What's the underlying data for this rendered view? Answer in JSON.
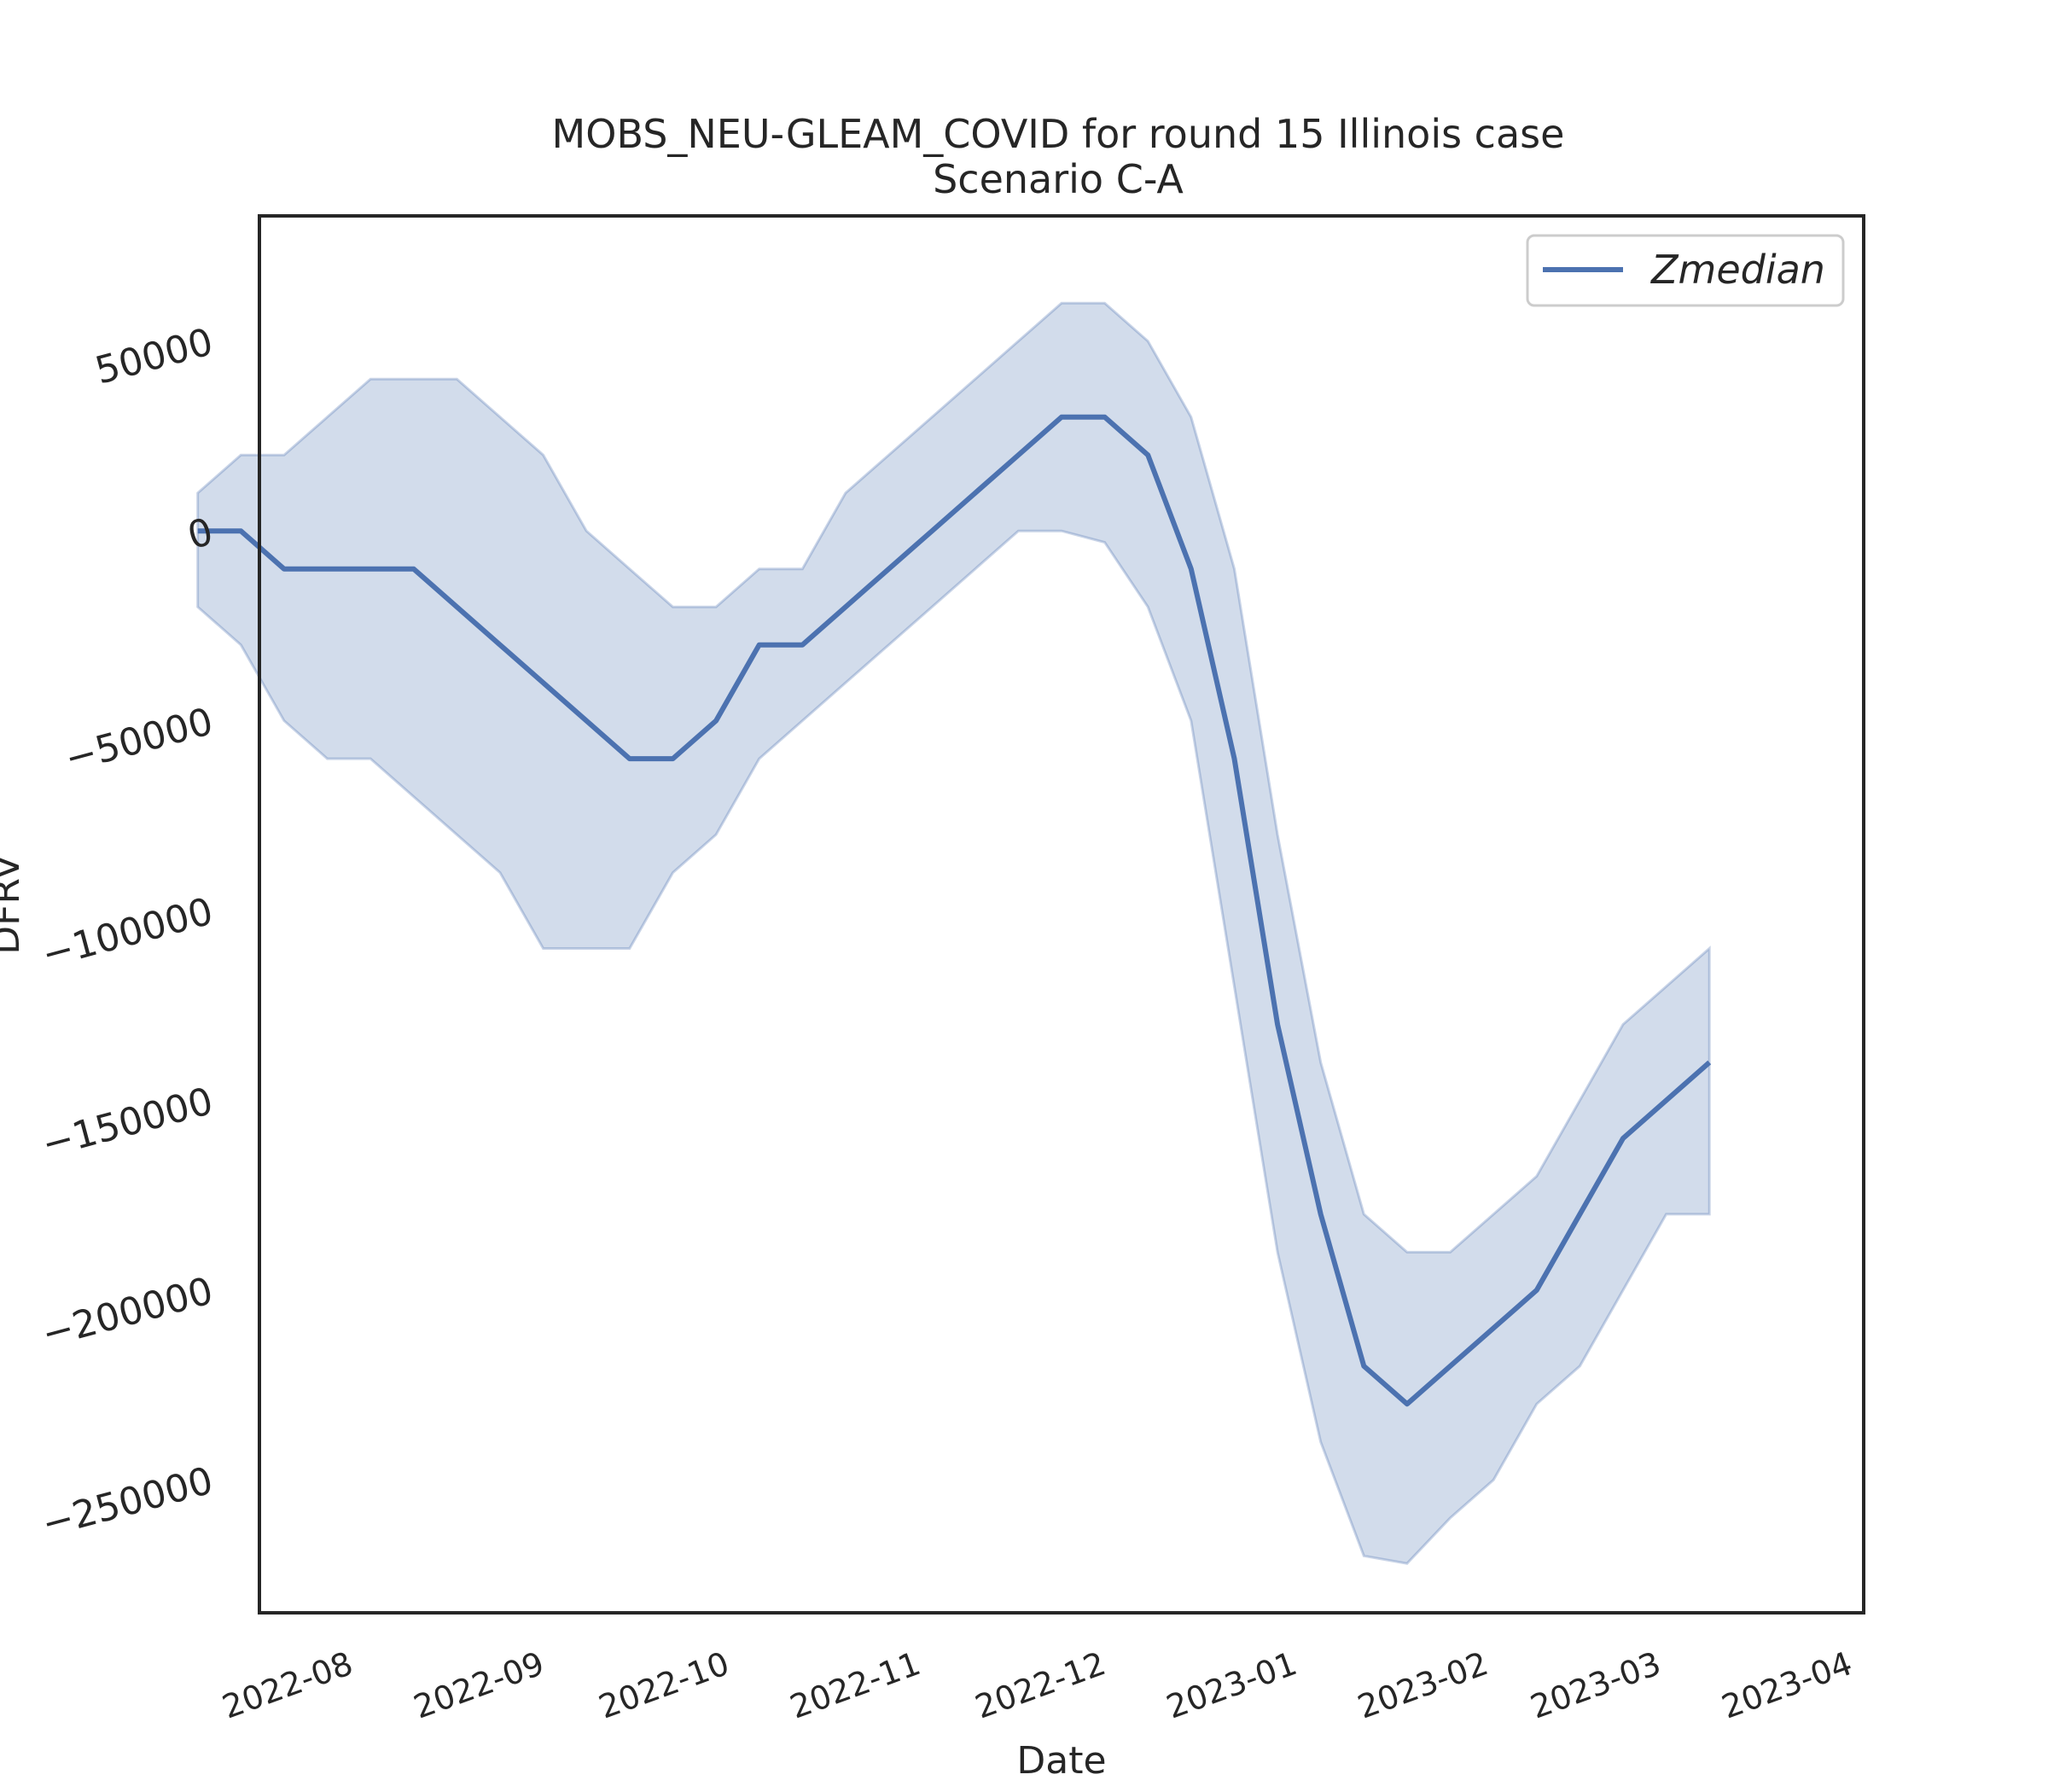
{
  "chart_data": {
    "type": "line",
    "title": "MOBS_NEU-GLEAM_COVID for round 15 Illinois case",
    "subtitle": "Scenario C-A",
    "xlabel": "Date",
    "ylabel": "DFRV",
    "x_ticks": [
      "2022-08",
      "2022-09",
      "2022-10",
      "2022-11",
      "2022-12",
      "2023-01",
      "2023-02",
      "2023-03",
      "2023-04"
    ],
    "y_ticks": [
      50000,
      0,
      -50000,
      -100000,
      -150000,
      -200000,
      -250000
    ],
    "y_tick_labels": [
      "50000",
      "0",
      "−50000",
      "−100000",
      "−150000",
      "−200000",
      "−250000"
    ],
    "xlim": [
      "2022-07-19",
      "2023-04-05"
    ],
    "ylim": [
      -285000,
      83000
    ],
    "legend_position": "top-right",
    "grid": false,
    "series": [
      {
        "name": "Zmedian",
        "color": "#4c72b0",
        "x": [
          "2022-07-09",
          "2022-07-16",
          "2022-07-23",
          "2022-07-30",
          "2022-08-06",
          "2022-08-13",
          "2022-08-20",
          "2022-08-27",
          "2022-09-03",
          "2022-09-10",
          "2022-09-17",
          "2022-09-24",
          "2022-10-01",
          "2022-10-08",
          "2022-10-15",
          "2022-10-22",
          "2022-10-29",
          "2022-11-05",
          "2022-11-12",
          "2022-11-19",
          "2022-11-26",
          "2022-12-03",
          "2022-12-10",
          "2022-12-17",
          "2022-12-24",
          "2022-12-31",
          "2023-01-07",
          "2023-01-14",
          "2023-01-21",
          "2023-01-28",
          "2023-02-04",
          "2023-02-11",
          "2023-02-18",
          "2023-02-25",
          "2023-03-04",
          "2023-03-11"
        ],
        "y": [
          0,
          0,
          -10000,
          -10000,
          -10000,
          -10000,
          -20000,
          -30000,
          -40000,
          -50000,
          -60000,
          -60000,
          -50000,
          -30000,
          -30000,
          -20000,
          -10000,
          0,
          10000,
          20000,
          30000,
          30000,
          20000,
          -10000,
          -60000,
          -130000,
          -180000,
          -220000,
          -230000,
          -220000,
          -210000,
          -200000,
          -180000,
          -160000,
          -150000,
          -140000
        ],
        "band_lower": [
          -20000,
          -30000,
          -50000,
          -60000,
          -60000,
          -70000,
          -80000,
          -90000,
          -110000,
          -110000,
          -110000,
          -90000,
          -80000,
          -60000,
          -50000,
          -40000,
          -30000,
          -20000,
          -10000,
          0,
          0,
          -3000,
          -20000,
          -50000,
          -120000,
          -190000,
          -240000,
          -270000,
          -272000,
          -260000,
          -250000,
          -230000,
          -220000,
          -200000,
          -180000,
          -180000
        ],
        "band_upper": [
          10000,
          20000,
          20000,
          30000,
          40000,
          40000,
          40000,
          30000,
          20000,
          0,
          -10000,
          -20000,
          -20000,
          -10000,
          -10000,
          10000,
          20000,
          30000,
          40000,
          50000,
          60000,
          60000,
          50000,
          30000,
          -10000,
          -80000,
          -140000,
          -180000,
          -190000,
          -190000,
          -180000,
          -170000,
          -150000,
          -130000,
          -120000,
          -110000
        ]
      }
    ]
  }
}
